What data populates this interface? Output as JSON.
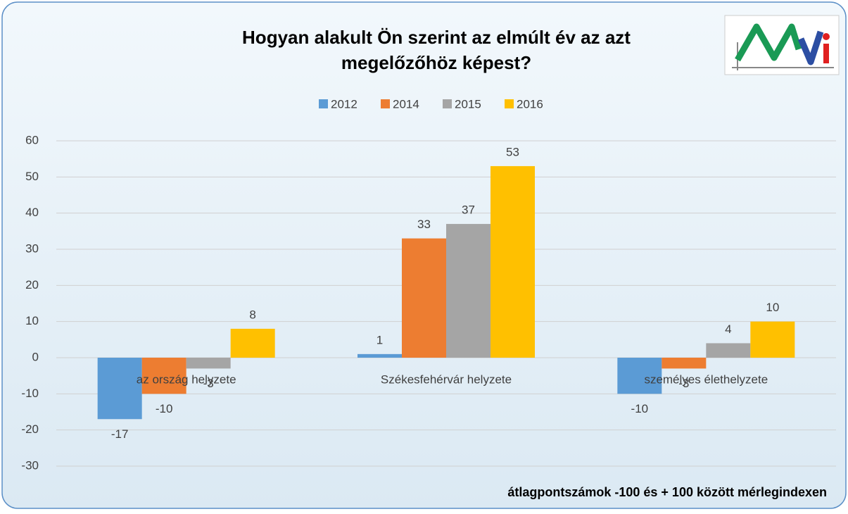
{
  "chart_data": {
    "type": "bar",
    "title": "Hogyan alakult Ön szerint az elmúlt év az azt",
    "title_line2": "megelőzőhöz képest?",
    "note": "átlagpontszámok -100 és + 100 között mérlegindexen",
    "categories": [
      "az ország helyzete",
      "Székesfehérvár helyzete",
      "személyes élethelyzete"
    ],
    "series": [
      {
        "name": "2012",
        "color": "#5b9bd5",
        "values": [
          -17,
          1,
          -10
        ]
      },
      {
        "name": "2014",
        "color": "#ed7d31",
        "values": [
          -10,
          33,
          -3
        ]
      },
      {
        "name": "2015",
        "color": "#a5a5a5",
        "values": [
          -3,
          37,
          4
        ]
      },
      {
        "name": "2016",
        "color": "#ffc000",
        "values": [
          8,
          53,
          10
        ]
      }
    ],
    "ylim": [
      -30,
      60
    ],
    "yticks": [
      -30,
      -20,
      -10,
      0,
      10,
      20,
      30,
      40,
      50,
      60
    ],
    "grid": true,
    "legend": "top"
  }
}
